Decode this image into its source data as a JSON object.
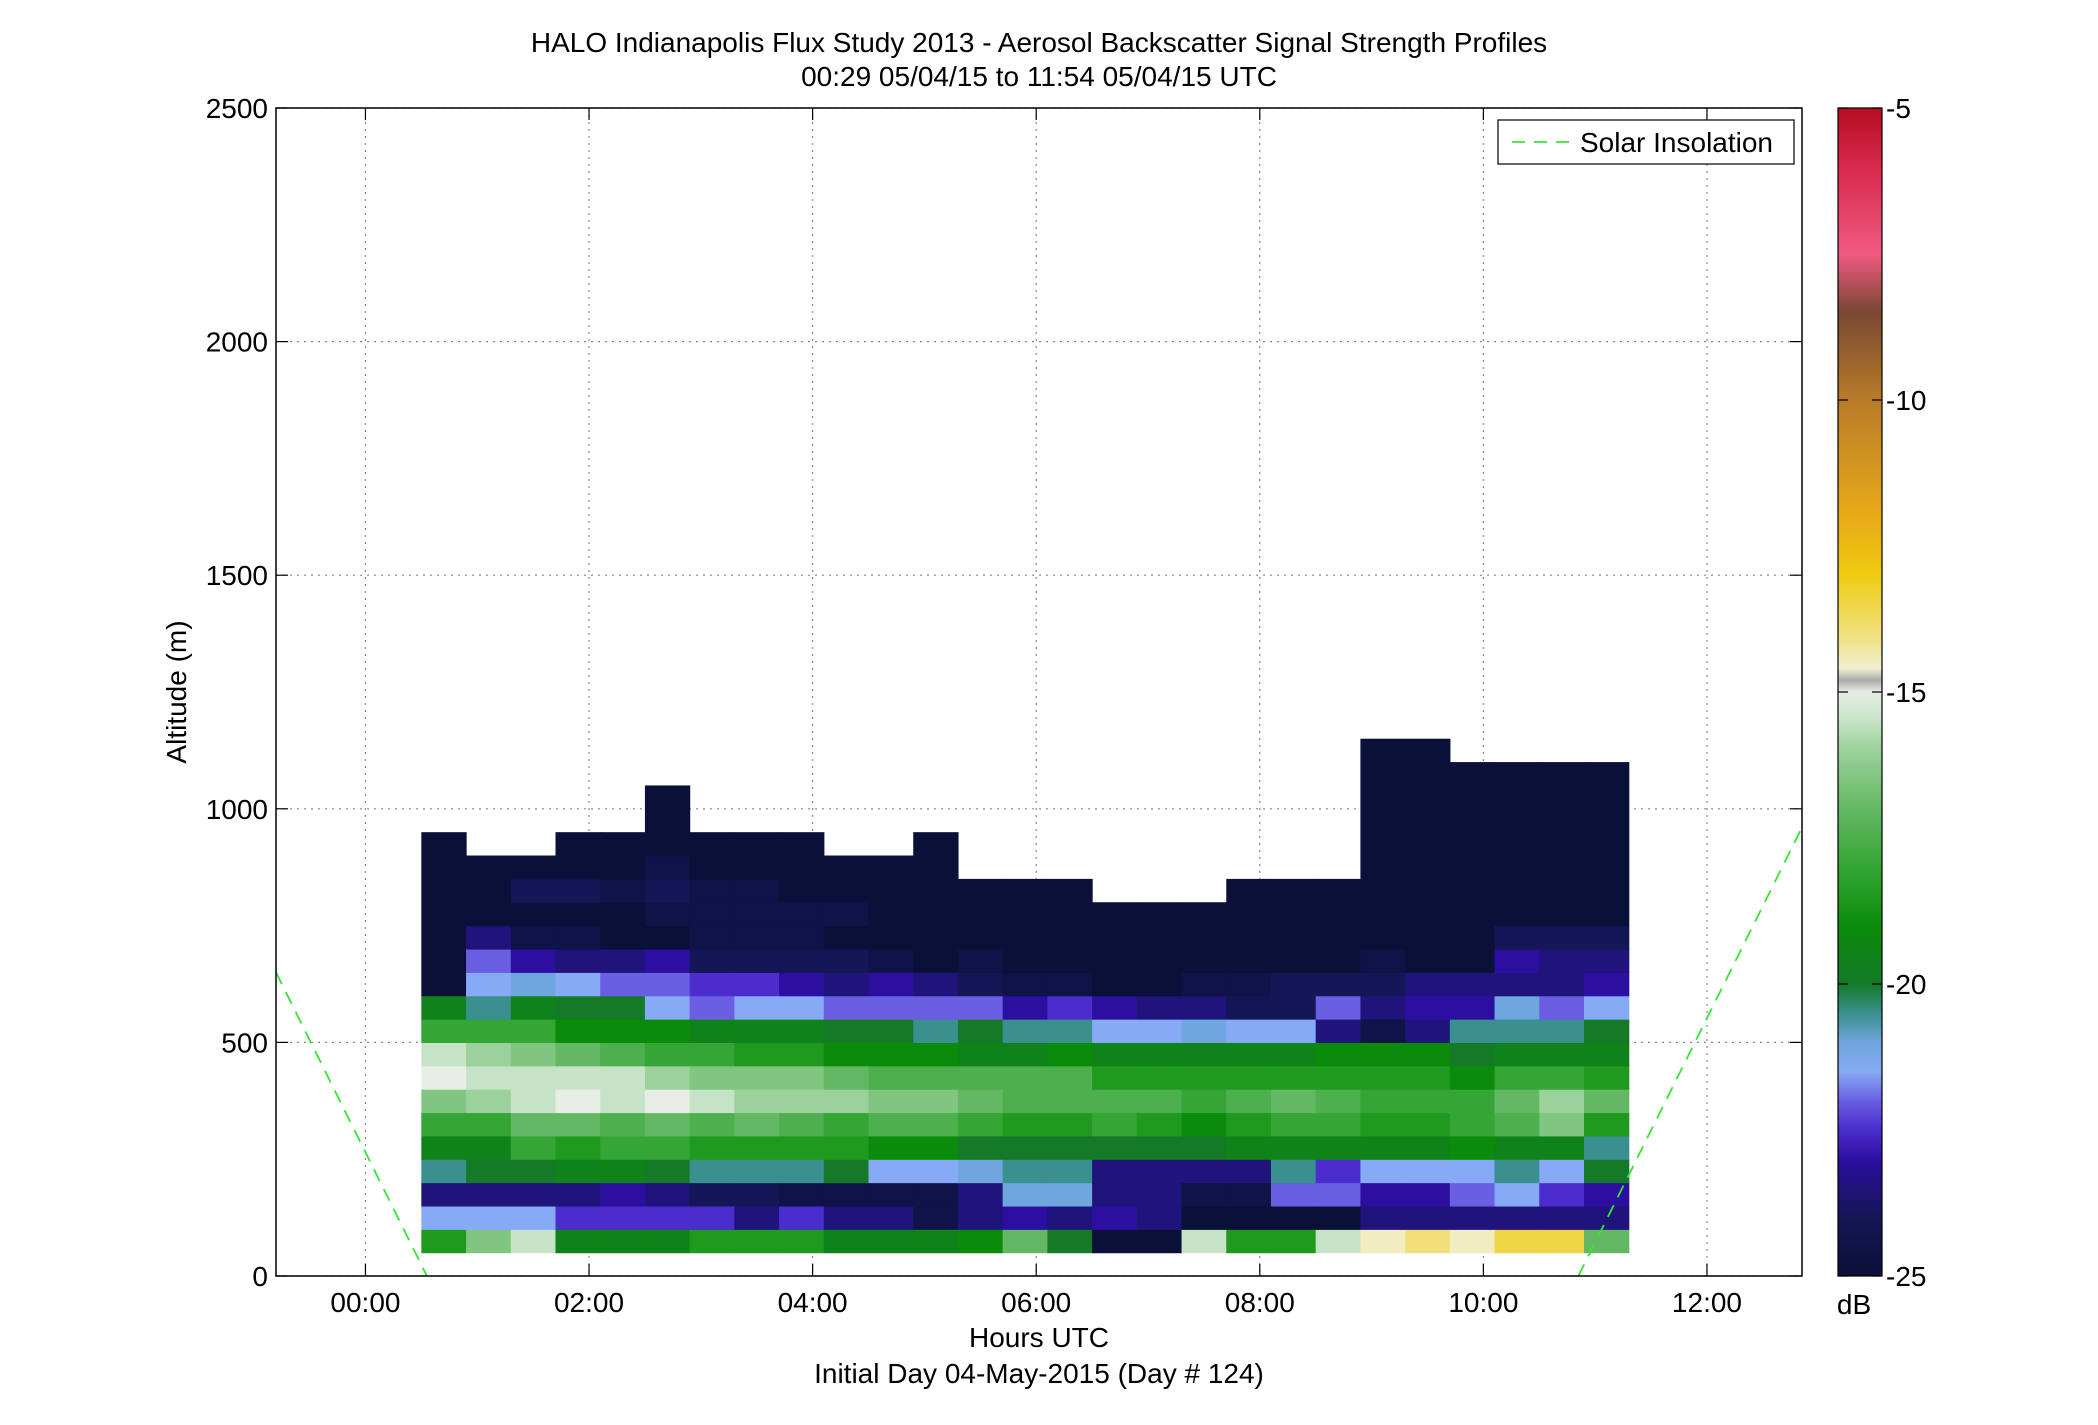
{
  "chart_data": {
    "type": "heatmap",
    "title": "HALO Indianapolis Flux Study 2013 - Aerosol Backscatter Signal Strength Profiles",
    "subtitle": "00:29 05/04/15 to 11:54 05/04/15  UTC",
    "xlabel": "Hours UTC",
    "footer": "Initial Day 04-May-2015 (Day # 124)",
    "ylabel": "Altitude (m)",
    "xlim": [
      -0.8,
      12.85
    ],
    "ylim": [
      0,
      2500
    ],
    "x_ticks": [
      0,
      2,
      4,
      6,
      8,
      10,
      12
    ],
    "x_tick_labels": [
      "00:00",
      "02:00",
      "04:00",
      "06:00",
      "08:00",
      "10:00",
      "12:00"
    ],
    "y_ticks": [
      0,
      500,
      1000,
      1500,
      2000,
      2500
    ],
    "y_tick_labels": [
      "0",
      "500",
      "1000",
      "1500",
      "2000",
      "2500"
    ],
    "grid": true,
    "legend": {
      "placement": "top-right",
      "entries": [
        "Solar Insolation"
      ]
    },
    "colorbar": {
      "unit": "dB",
      "range": [
        -25,
        -5
      ],
      "ticks": [
        -25,
        -20,
        -15,
        -10,
        -5
      ],
      "tick_labels": [
        "-25",
        "-20",
        "-15",
        "-10",
        "-5"
      ]
    },
    "time_start": 0.5,
    "bin_width_hours": 0.4,
    "gate_base_m": 50,
    "gate_height_m": 50,
    "profiles": [
      [
        -18.5,
        -21.5,
        -23.5,
        -20.5,
        -19.5,
        -18.0,
        -16.5,
        -15.0,
        -15.5,
        -18.0,
        -19.5,
        -25,
        -25,
        -25,
        -25,
        -25,
        -25,
        -25
      ],
      [
        -16.5,
        -21.5,
        -23.5,
        -20.0,
        -19.5,
        -18.0,
        -16.0,
        -15.5,
        -16.0,
        -18.0,
        -20.5,
        -21.5,
        -22.0,
        -23.5,
        -25,
        -25,
        -25
      ],
      [
        -15.5,
        -21.5,
        -23.5,
        -20.0,
        -18.0,
        -17.0,
        -15.5,
        -15.5,
        -16.5,
        -18.0,
        -19.5,
        -21.0,
        -23.0,
        -24.5,
        -25,
        -24.0,
        -25
      ],
      [
        -19.5,
        -22.5,
        -23.5,
        -19.5,
        -18.5,
        -17.0,
        -15.0,
        -15.5,
        -17.0,
        -19.0,
        -20.0,
        -21.5,
        -23.5,
        -24.5,
        -25,
        -24.0,
        -25,
        -25
      ],
      [
        -19.5,
        -22.5,
        -23.0,
        -19.5,
        -18.0,
        -17.5,
        -15.5,
        -15.5,
        -17.5,
        -19.0,
        -20.0,
        -22.0,
        -23.5,
        -25,
        -25,
        -24.5,
        -25,
        -25
      ],
      [
        -19.5,
        -22.5,
        -23.5,
        -20.0,
        -18.0,
        -17.0,
        -15.0,
        -16.0,
        -18.0,
        -19.0,
        -21.5,
        -22.0,
        -23.0,
        -25,
        -24.5,
        -24.0,
        -24.5,
        -25,
        -25,
        -25
      ],
      [
        -18.5,
        -22.5,
        -24.0,
        -20.5,
        -18.5,
        -17.5,
        -15.5,
        -16.5,
        -18.0,
        -19.5,
        -22.0,
        -22.5,
        -24.0,
        -24.5,
        -24.5,
        -24.5,
        -25,
        -25
      ],
      [
        -18.5,
        -23.5,
        -24.0,
        -20.5,
        -18.5,
        -17.0,
        -16.0,
        -16.5,
        -18.5,
        -19.5,
        -21.5,
        -22.5,
        -24.0,
        -24.5,
        -24.5,
        -24.5,
        -25,
        -25
      ],
      [
        -18.5,
        -22.5,
        -24.5,
        -20.5,
        -18.5,
        -17.5,
        -16.0,
        -16.5,
        -18.5,
        -19.5,
        -21.5,
        -23.0,
        -24.0,
        -24.5,
        -24.5,
        -25,
        -25,
        -25
      ],
      [
        -19.5,
        -23.5,
        -24.5,
        -20.0,
        -18.5,
        -18.0,
        -16.0,
        -17.0,
        -19.0,
        -20.0,
        -22.0,
        -23.5,
        -24.0,
        -25,
        -24.5,
        -25,
        -25
      ],
      [
        -19.5,
        -23.5,
        -24.5,
        -21.5,
        -19.0,
        -17.5,
        -16.5,
        -17.5,
        -19.0,
        -20.0,
        -22.0,
        -23.0,
        -24.5,
        -25,
        -25,
        -25,
        -25
      ],
      [
        -19.5,
        -24.5,
        -24.5,
        -21.5,
        -19.0,
        -17.5,
        -16.5,
        -17.5,
        -19.0,
        -20.5,
        -22.0,
        -23.5,
        -25,
        -25,
        -25,
        -25,
        -25,
        -25
      ],
      [
        -19.0,
        -23.5,
        -23.5,
        -21.0,
        -20.0,
        -18.0,
        -17.0,
        -17.5,
        -19.5,
        -20.0,
        -22.0,
        -24.0,
        -24.5,
        -25,
        -25,
        -25
      ],
      [
        -17.0,
        -23.0,
        -21.0,
        -20.5,
        -20.0,
        -18.5,
        -17.5,
        -17.5,
        -19.5,
        -20.5,
        -23.0,
        -24.5,
        -25,
        -25,
        -25,
        -25
      ],
      [
        -20.0,
        -23.5,
        -21.0,
        -20.5,
        -20.0,
        -18.5,
        -17.5,
        -17.5,
        -19.0,
        -20.5,
        -22.5,
        -24.5,
        -25,
        -25,
        -25,
        -25
      ],
      [
        -25,
        -23.0,
        -23.5,
        -23.5,
        -20.0,
        -18.0,
        -17.5,
        -18.5,
        -19.5,
        -21.5,
        -23.0,
        -25,
        -25,
        -25,
        -25
      ],
      [
        -25,
        -23.5,
        -23.5,
        -23.5,
        -20.0,
        -18.5,
        -17.5,
        -18.5,
        -19.5,
        -21.5,
        -23.5,
        -25,
        -25,
        -25,
        -25
      ],
      [
        -15.5,
        -25,
        -24.5,
        -23.5,
        -20.0,
        -19.0,
        -18.0,
        -18.5,
        -19.5,
        -21.0,
        -23.5,
        -24.5,
        -25,
        -25,
        -25
      ],
      [
        -18.5,
        -25,
        -24.5,
        -23.5,
        -19.5,
        -18.5,
        -17.5,
        -18.5,
        -19.5,
        -21.5,
        -24.0,
        -24.5,
        -25,
        -25,
        -25,
        -25
      ],
      [
        -18.5,
        -25,
        -22.0,
        -20.5,
        -19.5,
        -18.0,
        -17.0,
        -18.5,
        -19.5,
        -21.5,
        -24.0,
        -24.0,
        -25,
        -25,
        -25,
        -25
      ],
      [
        -15.5,
        -25,
        -22.0,
        -22.5,
        -19.5,
        -18.0,
        -17.5,
        -18.5,
        -19.0,
        -23.5,
        -22.0,
        -24.0,
        -25,
        -25,
        -25,
        -25
      ],
      [
        -14.5,
        -23.5,
        -23.0,
        -21.5,
        -19.5,
        -18.5,
        -18.0,
        -18.5,
        -19.0,
        -24.5,
        -23.5,
        -24.0,
        -24.5,
        -25,
        -25,
        -25,
        -25,
        -25,
        -25,
        -25,
        -25,
        -25
      ],
      [
        -14.0,
        -23.5,
        -23.0,
        -21.5,
        -19.5,
        -18.5,
        -18.0,
        -18.5,
        -19.0,
        -23.5,
        -23.0,
        -23.5,
        -25,
        -25,
        -25,
        -25,
        -25,
        -25,
        -25,
        -25,
        -25,
        -25
      ],
      [
        -14.5,
        -23.5,
        -22.0,
        -21.5,
        -19.0,
        -18.0,
        -18.0,
        -19.0,
        -20.0,
        -20.5,
        -23.0,
        -23.5,
        -25,
        -25,
        -25,
        -25,
        -25,
        -25,
        -25,
        -25,
        -25
      ],
      [
        -13.5,
        -23.5,
        -21.5,
        -20.5,
        -19.5,
        -17.5,
        -17.0,
        -18.0,
        -19.5,
        -20.5,
        -21.0,
        -23.5,
        -23.0,
        -24.0,
        -25,
        -25,
        -25,
        -25,
        -25,
        -25,
        -25
      ],
      [
        -13.5,
        -23.5,
        -22.5,
        -21.5,
        -19.5,
        -16.5,
        -16.0,
        -18.0,
        -19.5,
        -20.5,
        -22.0,
        -23.5,
        -23.5,
        -24.0,
        -25,
        -25,
        -25,
        -25,
        -25,
        -25,
        -25
      ],
      [
        -17.0,
        -23.5,
        -23.0,
        -20.0,
        -20.5,
        -18.5,
        -17.0,
        -18.5,
        -19.5,
        -20.0,
        -21.5,
        -23.0,
        -23.5,
        -24.0,
        -25,
        -25,
        -25,
        -25,
        -25,
        -25,
        -25
      ]
    ],
    "series": [
      {
        "name": "Solar Insolation",
        "x": [
          -0.8,
          0.55,
          10.85,
          12.85
        ],
        "y": [
          650,
          0,
          0,
          960
        ]
      }
    ]
  }
}
